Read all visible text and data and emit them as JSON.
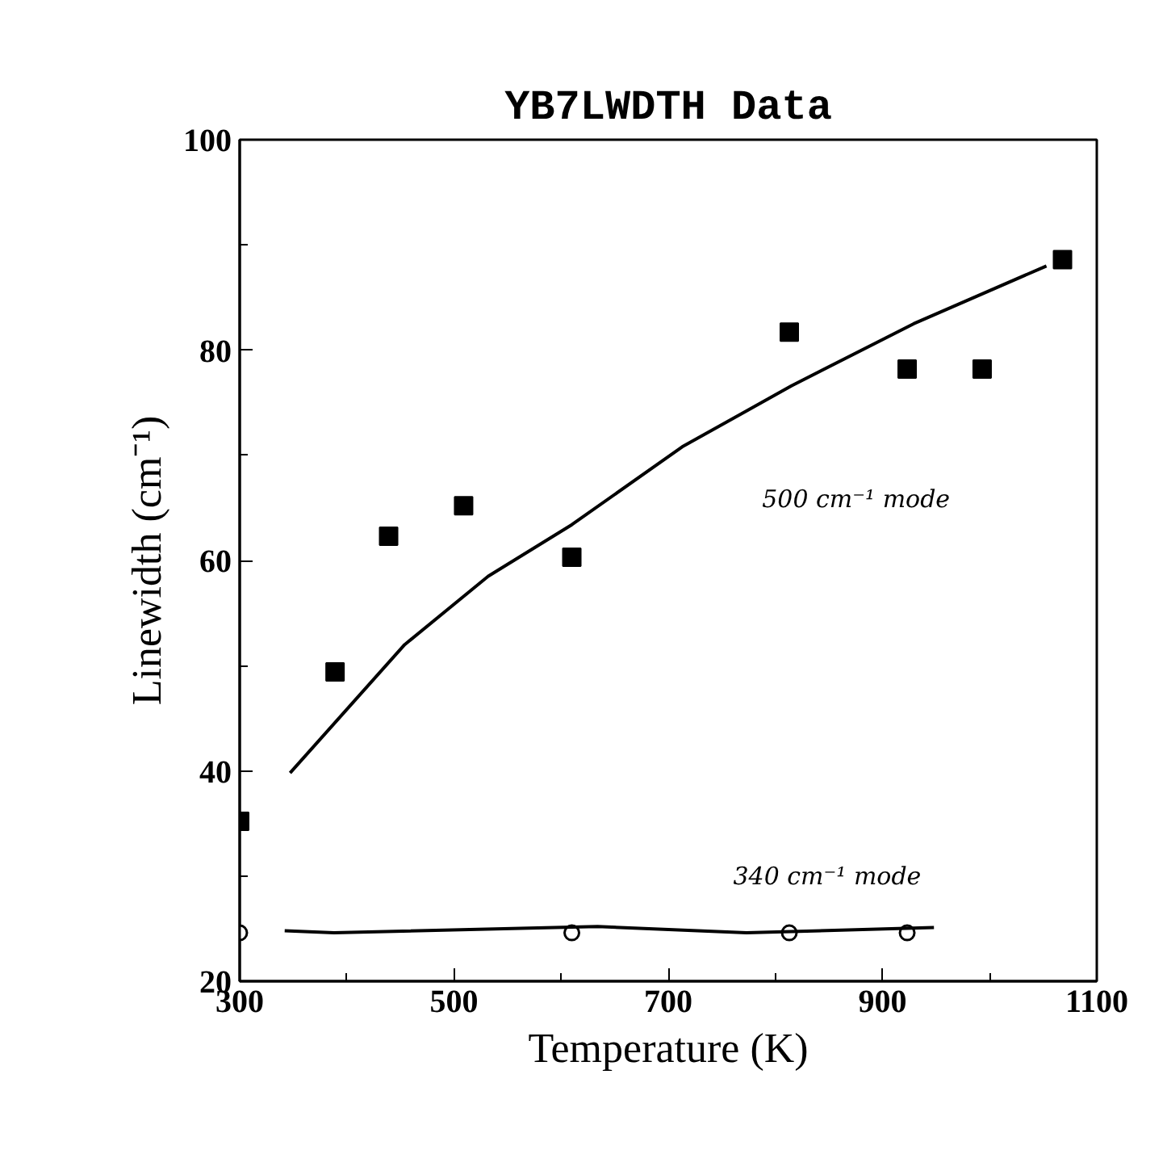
{
  "chart_data": {
    "type": "scatter",
    "title": "YB7LWDTH Data",
    "xlabel": "Temperature (K)",
    "ylabel": "Linewidth (cm⁻¹)",
    "xlim": [
      300,
      1100
    ],
    "xticks": [
      300,
      500,
      700,
      900,
      1100
    ],
    "ylim": [
      20,
      100
    ],
    "yticks": [
      20,
      40,
      60,
      80,
      100
    ],
    "grid": false,
    "series": [
      {
        "marker": "square",
        "color": "#000000",
        "x": [
          300,
          389,
          439,
          509,
          610,
          813,
          923,
          993,
          1068
        ],
        "values": [
          35.2,
          49.4,
          62.3,
          65.2,
          60.3,
          81.7,
          78.2,
          78.2,
          88.6
        ]
      },
      {
        "type": "line",
        "name": "500 cm⁻¹ mode",
        "marker": "none",
        "color": "#000000",
        "x": [
          347,
          454,
          532,
          610,
          713,
          815,
          929,
          1053
        ],
        "values": [
          39.8,
          52.0,
          58.5,
          63.4,
          70.8,
          76.6,
          82.5,
          88.0
        ]
      },
      {
        "marker": "circle",
        "color": "#000000",
        "x": [
          300,
          610,
          813,
          923
        ],
        "values": [
          24.6,
          24.6,
          24.6,
          24.6
        ]
      },
      {
        "type": "line",
        "name": "340 cm⁻¹ mode",
        "marker": "none",
        "color": "#000000",
        "x": [
          342,
          388,
          634,
          773,
          948
        ],
        "values": [
          24.8,
          24.6,
          25.2,
          24.6,
          25.1
        ]
      }
    ]
  }
}
